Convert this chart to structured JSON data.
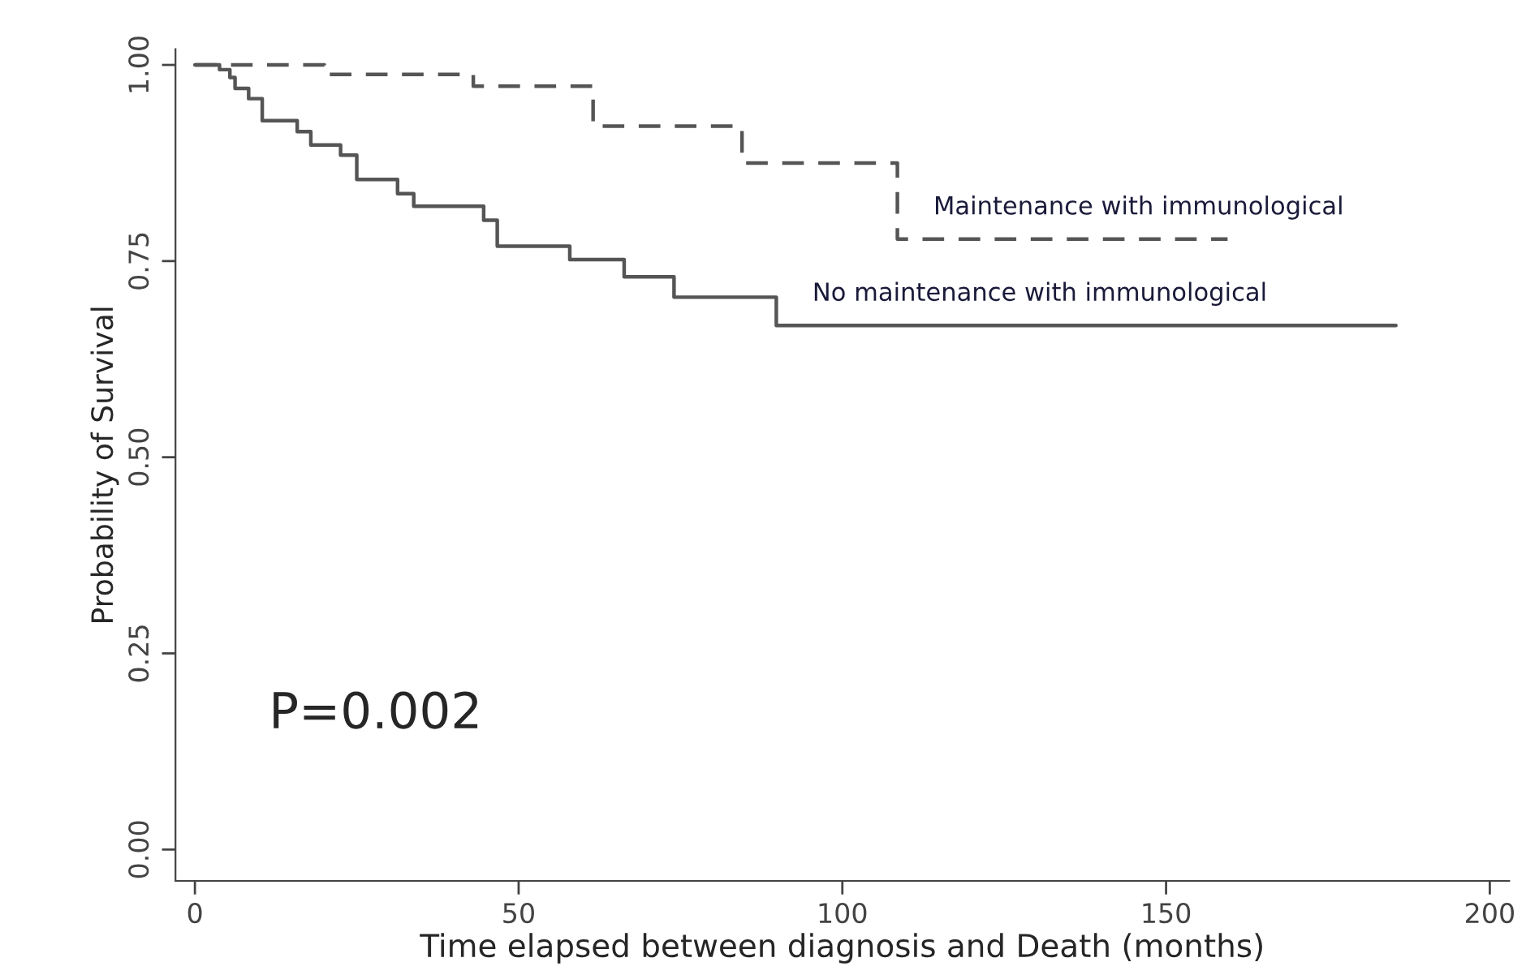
{
  "chart_data": {
    "type": "step",
    "xlabel": "Time elapsed between diagnosis and Death (months)",
    "ylabel": "Probability of Survival",
    "xlim": [
      -3,
      203
    ],
    "ylim": [
      -0.04,
      1.02
    ],
    "xticks": [
      0,
      50,
      100,
      150,
      200
    ],
    "yticks": [
      {
        "value": 0,
        "label": "0.00"
      },
      {
        "value": 0.25,
        "label": "0.25"
      },
      {
        "value": 0.5,
        "label": "0.50"
      },
      {
        "value": 0.75,
        "label": "0.75"
      },
      {
        "value": 1,
        "label": "1.00"
      }
    ],
    "grid": false,
    "legend": false,
    "series": [
      {
        "name": "Maintenance with immunological",
        "color": "#555555",
        "line_style": "dashed",
        "x": [
          0,
          20,
          43,
          61.5,
          84.5,
          108.5,
          159.5
        ],
        "values": [
          1.0,
          0.988,
          0.973,
          0.922,
          0.875,
          0.778,
          0.778
        ]
      },
      {
        "name": "No maintenance with immunological",
        "color": "#555555",
        "line_style": "solid",
        "x": [
          0,
          3.8,
          5.4,
          6.2,
          8.3,
          10.4,
          15.8,
          17.9,
          22.5,
          25,
          31.3,
          33.8,
          44.6,
          46.7,
          57.9,
          66.3,
          74,
          89.8,
          185.5
        ],
        "values": [
          1.0,
          0.994,
          0.984,
          0.97,
          0.957,
          0.929,
          0.915,
          0.898,
          0.885,
          0.854,
          0.836,
          0.82,
          0.802,
          0.769,
          0.752,
          0.73,
          0.704,
          0.668,
          0.668
        ]
      }
    ],
    "annotations": [
      "P=0.002"
    ]
  }
}
